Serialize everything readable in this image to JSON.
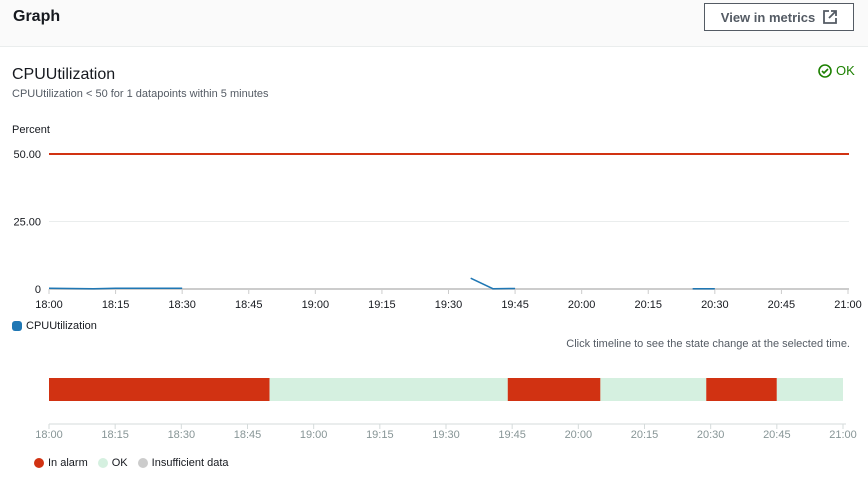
{
  "header": {
    "title": "Graph",
    "view_button": "View in metrics",
    "view_icon": "external-link-icon"
  },
  "alarm": {
    "title": "CPUUtilization",
    "condition": "CPUUtilization < 50 for 1 datapoints within 5 minutes",
    "state": "OK",
    "state_icon": "check-circle-icon",
    "state_color": "#1d8102"
  },
  "chart_data": {
    "type": "line",
    "ylabel": "Percent",
    "yticks": [
      "50.00",
      "25.00",
      "0"
    ],
    "ylim": [
      0,
      50
    ],
    "xticks": [
      "18:00",
      "18:15",
      "18:30",
      "18:45",
      "19:00",
      "19:15",
      "19:30",
      "19:45",
      "20:00",
      "20:15",
      "20:30",
      "20:45",
      "21:00"
    ],
    "threshold": 50,
    "threshold_color": "#d13212",
    "series": [
      {
        "name": "CPUUtilization",
        "color": "#1f77b4",
        "segments": [
          [
            [
              "18:00",
              0.3
            ],
            [
              "18:10",
              0.1
            ],
            [
              "18:15",
              0.3
            ],
            [
              "18:30",
              0.3
            ]
          ],
          [
            [
              "19:35",
              4
            ],
            [
              "19:40",
              0.1
            ],
            [
              "19:45",
              0.2
            ]
          ],
          [
            [
              "20:25",
              0.1
            ],
            [
              "20:30",
              0.1
            ]
          ]
        ]
      }
    ]
  },
  "timeline": {
    "hint": "Click timeline to see the state change at the selected time.",
    "xticks": [
      "18:00",
      "18:15",
      "18:30",
      "18:45",
      "19:00",
      "19:15",
      "19:30",
      "19:45",
      "20:00",
      "20:15",
      "20:30",
      "20:45",
      "21:00"
    ],
    "states": [
      {
        "state": "alarm",
        "from": "18:00",
        "to": "18:50"
      },
      {
        "state": "ok",
        "from": "18:50",
        "to": "19:44"
      },
      {
        "state": "alarm",
        "from": "19:44",
        "to": "20:05"
      },
      {
        "state": "ok",
        "from": "20:05",
        "to": "20:29"
      },
      {
        "state": "alarm",
        "from": "20:29",
        "to": "20:45"
      },
      {
        "state": "ok",
        "from": "20:45",
        "to": "21:00"
      }
    ],
    "colors": {
      "alarm": "#d13212",
      "ok": "#d5f0e0",
      "insufficient": "#cccccc"
    },
    "legend": [
      "In alarm",
      "OK",
      "Insufficient data"
    ]
  }
}
